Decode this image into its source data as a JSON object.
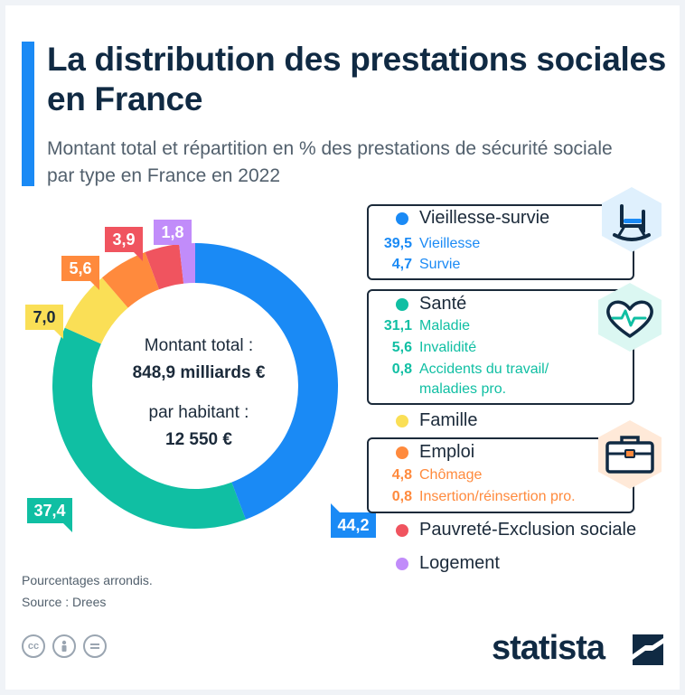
{
  "header": {
    "title": "La distribution des prestations sociales en France",
    "subtitle": "Montant total et répartition en % des prestations de sécurité sociale par type en France en 2022"
  },
  "center": {
    "total_label": "Montant total :",
    "total_value": "848,9 milliards €",
    "per_capita_label": "par habitant :",
    "per_capita_value": "12 550 €"
  },
  "chart_data": {
    "type": "pie",
    "donut": true,
    "title": "La distribution des prestations sociales en France",
    "unit": "%",
    "categories": [
      "Vieillesse-survie",
      "Santé",
      "Famille",
      "Emploi",
      "Pauvreté-Exclusion sociale",
      "Logement"
    ],
    "values": [
      44.2,
      37.4,
      7.0,
      5.6,
      3.9,
      1.8
    ],
    "labels": [
      "44,2",
      "37,4",
      "7,0",
      "5,6",
      "3,9",
      "1,8"
    ],
    "colors": [
      "#1a8af5",
      "#10bfa3",
      "#fadf56",
      "#ff8a3d",
      "#f0545f",
      "#c18cfa"
    ]
  },
  "legend": {
    "vieillesse": {
      "label": "Vieillesse-survie",
      "items": [
        {
          "value": "39,5",
          "label": "Vieillesse"
        },
        {
          "value": "4,7",
          "label": "Survie"
        }
      ]
    },
    "sante": {
      "label": "Santé",
      "items": [
        {
          "value": "31,1",
          "label": "Maladie"
        },
        {
          "value": "5,6",
          "label": "Invalidité"
        },
        {
          "value": "0,8",
          "label": "Accidents du travail/",
          "label2": "maladies pro."
        }
      ]
    },
    "famille": {
      "label": "Famille"
    },
    "emploi": {
      "label": "Emploi",
      "items": [
        {
          "value": "4,8",
          "label": "Chômage"
        },
        {
          "value": "0,8",
          "label": "Insertion/réinsertion pro."
        }
      ]
    },
    "pauvrete": {
      "label": "Pauvreté-Exclusion sociale"
    },
    "logement": {
      "label": "Logement"
    }
  },
  "icons": [
    "rocking-chair-icon",
    "heart-pulse-icon",
    "briefcase-icon"
  ],
  "footer": {
    "note": "Pourcentages arrondis.",
    "source": "Source : Drees",
    "license_icons": [
      "cc-icon",
      "attribution-icon",
      "no-derivatives-icon"
    ],
    "brand": "statista"
  }
}
